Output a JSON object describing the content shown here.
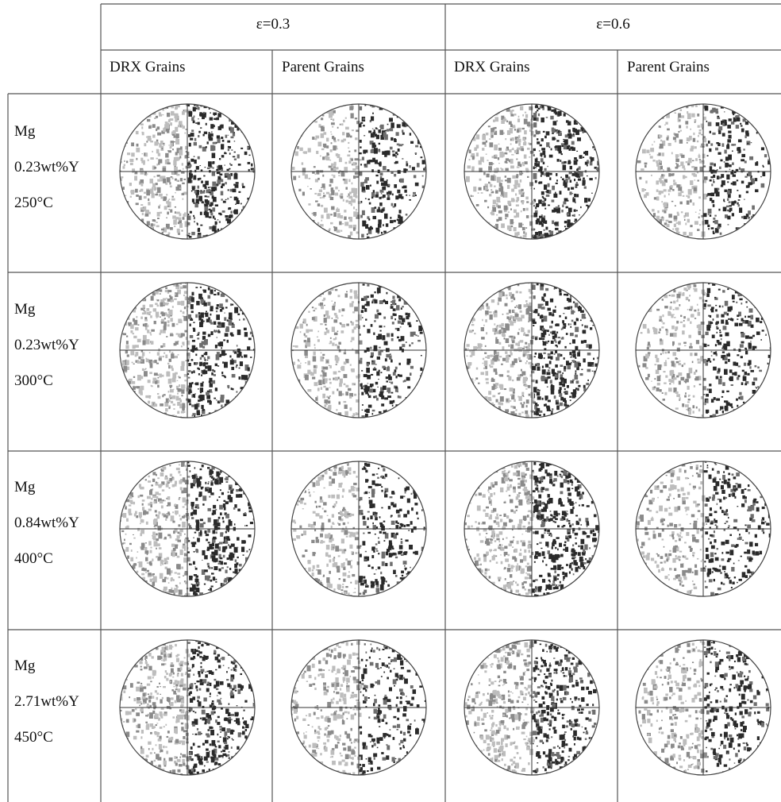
{
  "header": {
    "strain_groups": [
      {
        "label": "ε=0.3"
      },
      {
        "label": "ε=0.6"
      }
    ],
    "columns": [
      {
        "label": "DRX Grains"
      },
      {
        "label": "Parent Grains"
      },
      {
        "label": "DRX Grains"
      },
      {
        "label": "Parent Grains"
      }
    ]
  },
  "rows": [
    {
      "material": "Mg",
      "composition": "0.23wt%Y",
      "temperature": "250°C"
    },
    {
      "material": "Mg",
      "composition": "0.23wt%Y",
      "temperature": "300°C"
    },
    {
      "material": "Mg",
      "composition": "0.84wt%Y",
      "temperature": "400°C"
    },
    {
      "material": "Mg",
      "composition": "2.71wt%Y",
      "temperature": "450°C"
    }
  ],
  "colors": {
    "grid_line": "#555555",
    "dark_spot": "#2a2a2a",
    "mid_spot": "#6e6e6e",
    "light_spot": "#bdbdbd"
  }
}
